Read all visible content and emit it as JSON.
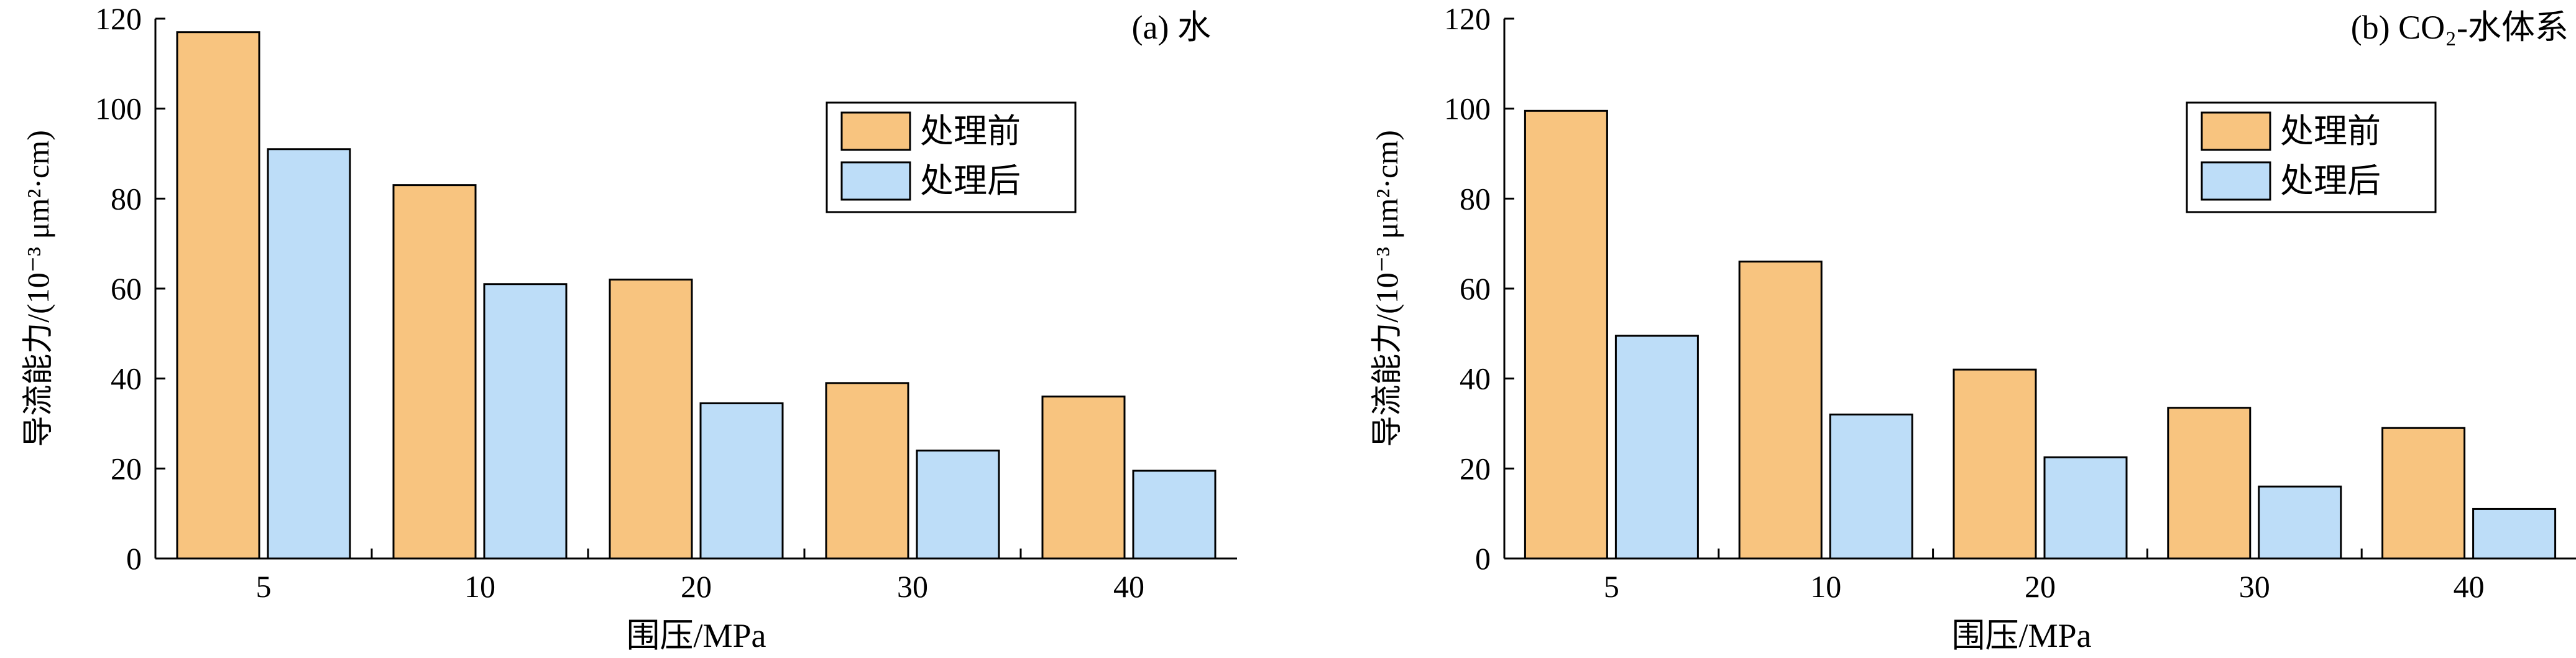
{
  "chart_data": [
    {
      "type": "bar",
      "panel_label": "(a) 水",
      "xlabel": "围压/MPa",
      "ylabel": "导流能力/(10⁻³ μm²·cm)",
      "categories": [
        "5",
        "10",
        "20",
        "30",
        "40"
      ],
      "ylim": [
        0,
        120
      ],
      "yticks": [
        "0",
        "20",
        "40",
        "60",
        "80",
        "100",
        "120"
      ],
      "legend_position": "top-right",
      "grid": false,
      "series": [
        {
          "name": "处理前",
          "color": "#F8C47F",
          "values": [
            117,
            83,
            62,
            39,
            36
          ]
        },
        {
          "name": "处理后",
          "color": "#BDDDF8",
          "values": [
            91,
            61,
            34.5,
            24,
            19.5
          ]
        }
      ]
    },
    {
      "type": "bar",
      "panel_label": "(b) CO₂-水体系",
      "xlabel": "围压/MPa",
      "ylabel": "导流能力/(10⁻³ μm²·cm)",
      "categories": [
        "5",
        "10",
        "20",
        "30",
        "40"
      ],
      "ylim": [
        0,
        120
      ],
      "yticks": [
        "0",
        "20",
        "40",
        "60",
        "80",
        "100",
        "120"
      ],
      "legend_position": "top-right",
      "grid": false,
      "series": [
        {
          "name": "处理前",
          "color": "#F8C47F",
          "values": [
            99.5,
            66,
            42,
            33.5,
            29
          ]
        },
        {
          "name": "处理后",
          "color": "#BDDDF8",
          "values": [
            49.5,
            32,
            22.5,
            16,
            11
          ]
        }
      ]
    }
  ]
}
